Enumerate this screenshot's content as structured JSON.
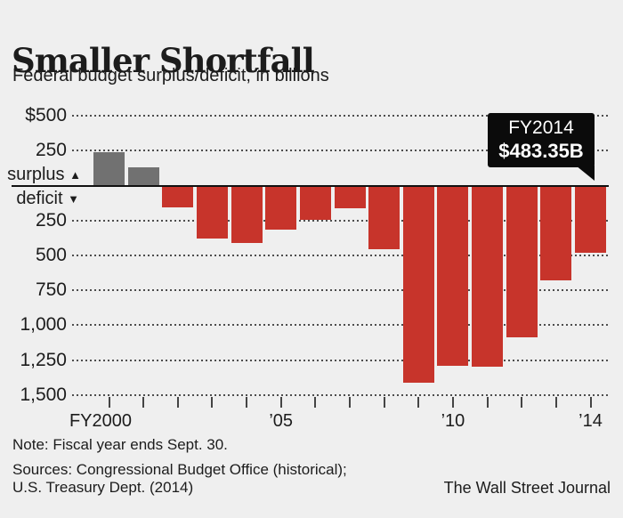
{
  "header": {
    "title": "Smaller Shortfall",
    "subtitle": "Federal budget surplus/deficit, in billions"
  },
  "chart_data": {
    "type": "bar",
    "x": [
      "FY2000",
      "FY2001",
      "FY2002",
      "FY2003",
      "FY2004",
      "FY2005",
      "FY2006",
      "FY2007",
      "FY2008",
      "FY2009",
      "FY2010",
      "FY2011",
      "FY2012",
      "FY2013",
      "FY2014"
    ],
    "values": [
      236.2,
      128.2,
      -157.8,
      -377.6,
      -412.7,
      -318.3,
      -248.2,
      -160.7,
      -458.6,
      -1412.7,
      -1294.4,
      -1299.6,
      -1087.0,
      -679.5,
      -483.35
    ],
    "title": "Smaller Shortfall",
    "ylabel": "billions of dollars",
    "ylim": [
      -1500,
      500
    ],
    "gridline_values": [
      500,
      250,
      -250,
      -500,
      -750,
      -1000,
      -1250,
      -1500
    ],
    "y_tick_labels": [
      {
        "text": "$500",
        "value": 500
      },
      {
        "text": "250",
        "value": 250
      },
      {
        "text": "250",
        "value": -250
      },
      {
        "text": "500",
        "value": -500
      },
      {
        "text": "750",
        "value": -750
      },
      {
        "text": "1,000",
        "value": -1000
      },
      {
        "text": "1,250",
        "value": -1250
      },
      {
        "text": "1,500",
        "value": -1500
      }
    ],
    "x_tick_labels": [
      {
        "text": "FY2000",
        "index": 0
      },
      {
        "text": "’05",
        "index": 5
      },
      {
        "text": "’10",
        "index": 10
      },
      {
        "text": "’14",
        "index": 14
      }
    ],
    "zero_labels": {
      "surplus": "surplus",
      "surplus_arrow": "▲",
      "deficit": "deficit",
      "deficit_arrow": "▼"
    },
    "colors": {
      "background": "#efefef",
      "surplus_bar": "#717171",
      "deficit_bar": "#c7342b",
      "zero_line": "#111111",
      "gridline": "#4d4d4d",
      "tick": "#444444",
      "text": "#1c1c1c",
      "callout_bg": "#0b0b0b",
      "callout_text": "#ffffff"
    }
  },
  "callout": {
    "title": "FY2014",
    "value": "$483.35B"
  },
  "footer": {
    "note": "Note: Fiscal year ends Sept. 30.",
    "sources_line1": "Sources: Congressional Budget Office (historical);",
    "sources_line2": "U.S. Treasury Dept. (2014)",
    "credit": "The Wall Street Journal"
  }
}
